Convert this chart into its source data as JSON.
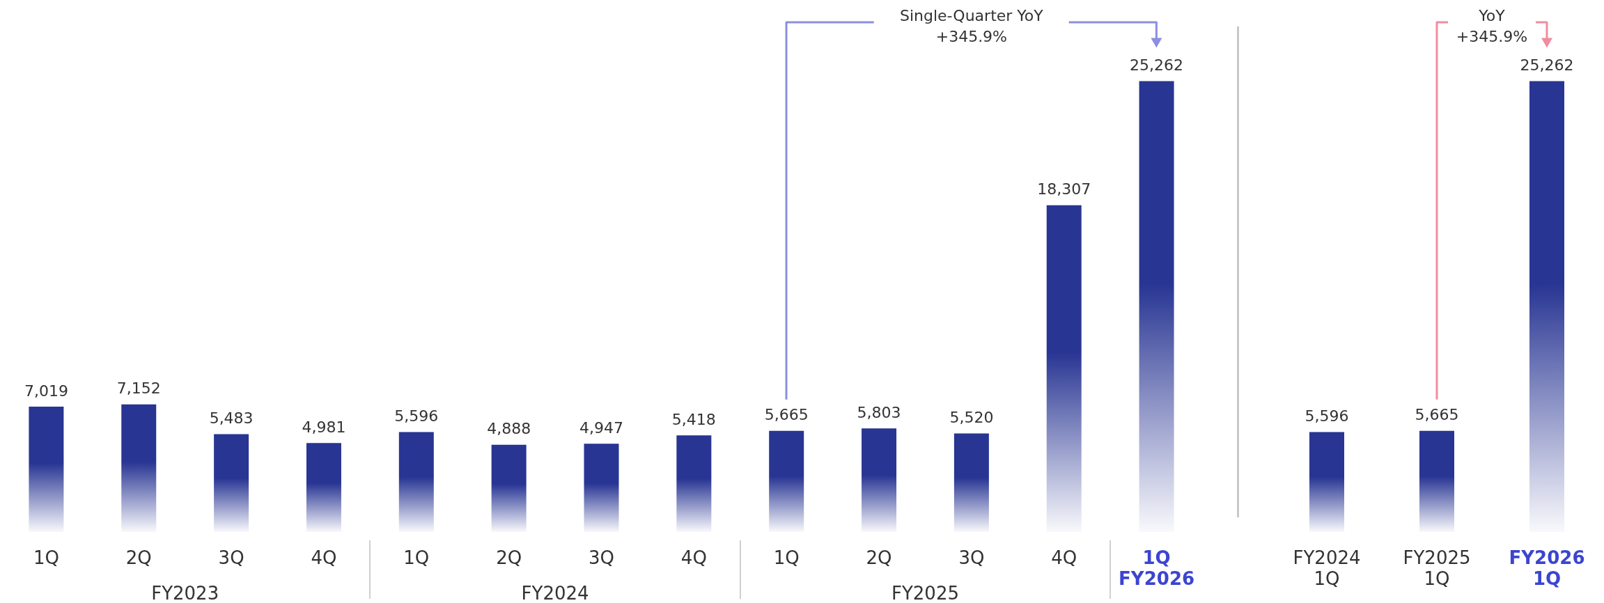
{
  "chart_data": [
    {
      "type": "bar",
      "categories": [
        "1Q",
        "2Q",
        "3Q",
        "4Q",
        "1Q",
        "2Q",
        "3Q",
        "4Q",
        "1Q",
        "2Q",
        "3Q",
        "4Q",
        "1Q\nFY2026"
      ],
      "values": [
        7019,
        7152,
        5483,
        4981,
        5596,
        4888,
        4947,
        5418,
        5665,
        5803,
        5520,
        18307,
        25262
      ],
      "color": "#283593",
      "value_labels": [
        "7,019",
        "7,152",
        "5,483",
        "4,981",
        "5,596",
        "4,888",
        "4,947",
        "5,418",
        "5,665",
        "5,803",
        "5,520",
        "18,307",
        "25,262"
      ],
      "annotations": [
        "FY2023",
        "FY2024",
        "FY2025",
        "Single-Quarter YoY\n+345.9%"
      ]
    },
    {
      "type": "bar",
      "categories": [
        "FY2024\n1Q",
        "FY2025\n1Q",
        "FY2026\n1Q"
      ],
      "values": [
        5596,
        5665,
        25262
      ],
      "color": "#283593",
      "value_labels": [
        "5,596",
        "5,665",
        "25,262"
      ],
      "annotations": [
        "YoY\n+345.9%"
      ]
    }
  ]
}
